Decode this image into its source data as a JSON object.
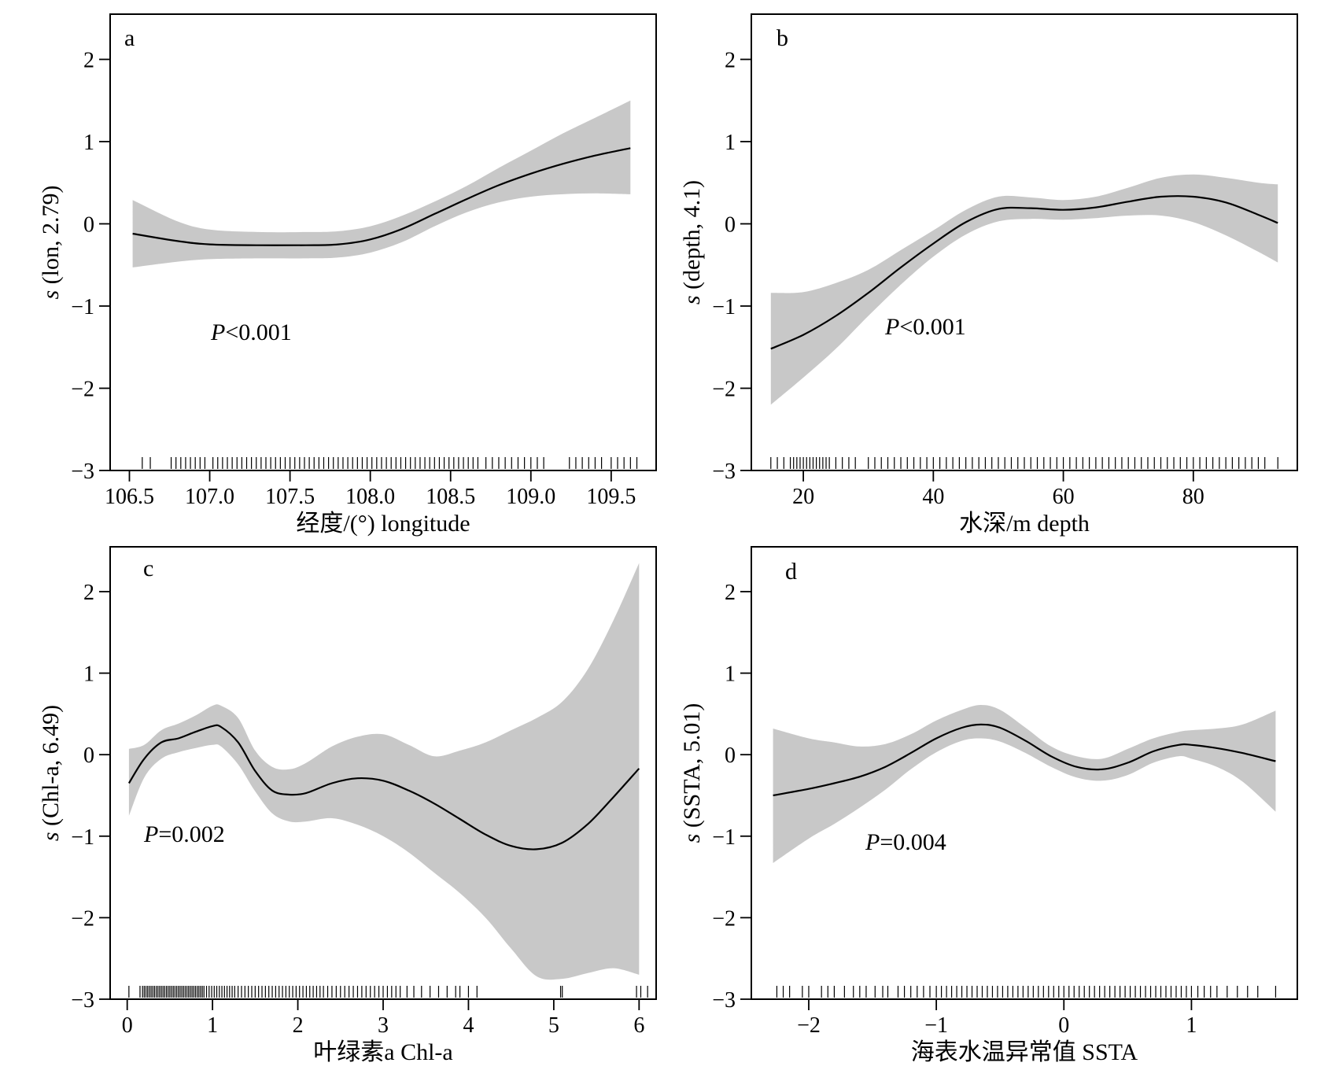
{
  "chart_data": [
    {
      "type": "line",
      "panel": "a",
      "xlabel": "经度/(°) longitude",
      "ylabel_italic": "s",
      "ylabel_rest": " (lon, 2.79)",
      "p_italic": "P",
      "p_rest": "<0.001",
      "xlim": [
        106.38,
        109.78
      ],
      "ylim": [
        -3,
        2.55
      ],
      "xticks": [
        106.5,
        107.0,
        107.5,
        108.0,
        108.5,
        109.0,
        109.5
      ],
      "xtick_labels": [
        "106.5",
        "107.0",
        "107.5",
        "108.0",
        "108.5",
        "109.0",
        "109.5"
      ],
      "yticks": [
        -3,
        -2,
        -1,
        0,
        1,
        2
      ],
      "ytick_labels": [
        "−3",
        "−2",
        "−1",
        "0",
        "1",
        "2"
      ],
      "fit": {
        "x": [
          106.52,
          106.8,
          107.0,
          107.3,
          107.6,
          107.8,
          108.0,
          108.2,
          108.4,
          108.6,
          108.8,
          109.0,
          109.2,
          109.4,
          109.62
        ],
        "y": [
          -0.12,
          -0.21,
          -0.25,
          -0.26,
          -0.26,
          -0.25,
          -0.19,
          -0.06,
          0.12,
          0.3,
          0.47,
          0.61,
          0.73,
          0.83,
          0.92
        ],
        "lower": [
          -0.53,
          -0.46,
          -0.43,
          -0.42,
          -0.42,
          -0.41,
          -0.35,
          -0.22,
          -0.03,
          0.14,
          0.26,
          0.33,
          0.36,
          0.37,
          0.36
        ],
        "upper": [
          0.29,
          0.03,
          -0.07,
          -0.1,
          -0.1,
          -0.09,
          -0.03,
          0.1,
          0.27,
          0.46,
          0.68,
          0.89,
          1.1,
          1.29,
          1.5
        ]
      },
      "rug": [
        106.58,
        106.63,
        106.76,
        106.79,
        106.82,
        106.85,
        106.88,
        106.91,
        106.94,
        106.97,
        107.02,
        107.05,
        107.08,
        107.11,
        107.14,
        107.17,
        107.2,
        107.23,
        107.26,
        107.29,
        107.32,
        107.35,
        107.38,
        107.41,
        107.44,
        107.47,
        107.5,
        107.53,
        107.56,
        107.59,
        107.62,
        107.65,
        107.68,
        107.71,
        107.74,
        107.77,
        107.8,
        107.83,
        107.86,
        107.89,
        107.92,
        107.95,
        107.98,
        108.01,
        108.04,
        108.07,
        108.1,
        108.13,
        108.16,
        108.19,
        108.22,
        108.25,
        108.28,
        108.31,
        108.34,
        108.37,
        108.4,
        108.43,
        108.46,
        108.49,
        108.52,
        108.55,
        108.58,
        108.61,
        108.64,
        108.67,
        108.72,
        108.76,
        108.8,
        108.84,
        108.88,
        108.92,
        108.96,
        109.0,
        109.04,
        109.08,
        109.24,
        109.28,
        109.32,
        109.36,
        109.4,
        109.44,
        109.5,
        109.54,
        109.58,
        109.62,
        109.66
      ]
    },
    {
      "type": "line",
      "panel": "b",
      "xlabel": "水深/m depth",
      "ylabel_italic": "s",
      "ylabel_rest": " (depth, 4.1)",
      "p_italic": "P",
      "p_rest": "<0.001",
      "xlim": [
        12,
        96
      ],
      "ylim": [
        -3,
        2.55
      ],
      "xticks": [
        20,
        40,
        60,
        80
      ],
      "xtick_labels": [
        "20",
        "40",
        "60",
        "80"
      ],
      "yticks": [
        -3,
        -2,
        -1,
        0,
        1,
        2
      ],
      "ytick_labels": [
        "−3",
        "−2",
        "−1",
        "0",
        "1",
        "2"
      ],
      "fit": {
        "x": [
          15,
          20,
          25,
          30,
          35,
          40,
          45,
          50,
          55,
          60,
          65,
          70,
          75,
          80,
          85,
          90,
          93
        ],
        "y": [
          -1.52,
          -1.35,
          -1.12,
          -0.84,
          -0.53,
          -0.24,
          0.02,
          0.18,
          0.19,
          0.17,
          0.2,
          0.27,
          0.33,
          0.33,
          0.26,
          0.11,
          0.01
        ],
        "lower": [
          -2.2,
          -1.87,
          -1.52,
          -1.12,
          -0.74,
          -0.4,
          -0.13,
          0.03,
          0.06,
          0.05,
          0.07,
          0.1,
          0.1,
          0.02,
          -0.14,
          -0.34,
          -0.47
        ],
        "upper": [
          -0.84,
          -0.83,
          -0.72,
          -0.56,
          -0.32,
          -0.08,
          0.17,
          0.33,
          0.32,
          0.29,
          0.33,
          0.44,
          0.56,
          0.6,
          0.56,
          0.5,
          0.48
        ]
      },
      "rug": [
        15,
        16,
        17,
        18,
        18.5,
        19,
        19.5,
        20,
        20.5,
        21,
        21.5,
        22,
        22.5,
        23,
        23.5,
        24,
        25,
        26,
        27,
        28,
        30,
        31,
        32,
        33,
        34,
        35,
        36,
        37,
        38,
        39,
        40,
        41,
        42,
        43,
        44,
        45,
        46,
        47,
        48,
        49,
        50,
        51,
        52,
        53,
        54,
        55,
        56,
        57,
        58,
        59,
        60,
        61,
        62,
        63,
        64,
        65,
        66,
        67,
        68,
        69,
        70,
        71,
        72,
        73,
        74,
        75,
        76,
        77,
        78,
        79,
        80,
        81,
        82,
        83,
        84,
        85,
        86,
        87,
        88,
        89,
        90,
        91,
        93
      ]
    },
    {
      "type": "line",
      "panel": "c",
      "xlabel": "叶绿素a Chl-a",
      "ylabel_italic": "s",
      "ylabel_rest": " (Chl-a, 6.49)",
      "p_italic": "P",
      "p_rest": "=0.002",
      "xlim": [
        -0.2,
        6.2
      ],
      "ylim": [
        -3,
        2.55
      ],
      "xticks": [
        0,
        1,
        2,
        3,
        4,
        5,
        6
      ],
      "xtick_labels": [
        "0",
        "1",
        "2",
        "3",
        "4",
        "5",
        "6"
      ],
      "yticks": [
        -3,
        -2,
        -1,
        0,
        1,
        2
      ],
      "ytick_labels": [
        "−3",
        "−2",
        "−1",
        "0",
        "1",
        "2"
      ],
      "fit": {
        "x": [
          0.02,
          0.2,
          0.4,
          0.6,
          0.8,
          1.0,
          1.1,
          1.3,
          1.5,
          1.7,
          1.9,
          2.1,
          2.4,
          2.7,
          3.0,
          3.3,
          3.6,
          3.9,
          4.2,
          4.5,
          4.8,
          5.1,
          5.4,
          5.7,
          6.0
        ],
        "y": [
          -0.35,
          -0.05,
          0.15,
          0.2,
          0.28,
          0.35,
          0.34,
          0.15,
          -0.2,
          -0.44,
          -0.49,
          -0.47,
          -0.35,
          -0.29,
          -0.32,
          -0.44,
          -0.6,
          -0.79,
          -0.98,
          -1.12,
          -1.16,
          -1.08,
          -0.85,
          -0.52,
          -0.17
        ],
        "lower": [
          -0.75,
          -0.28,
          -0.05,
          0.03,
          0.08,
          0.12,
          0.1,
          -0.12,
          -0.45,
          -0.72,
          -0.82,
          -0.82,
          -0.78,
          -0.86,
          -1.0,
          -1.2,
          -1.45,
          -1.7,
          -2.0,
          -2.38,
          -2.72,
          -2.75,
          -2.68,
          -2.62,
          -2.7
        ],
        "upper": [
          0.07,
          0.12,
          0.3,
          0.38,
          0.48,
          0.6,
          0.6,
          0.45,
          0.05,
          -0.15,
          -0.18,
          -0.1,
          0.1,
          0.22,
          0.25,
          0.12,
          -0.02,
          0.05,
          0.15,
          0.3,
          0.45,
          0.65,
          1.05,
          1.65,
          2.35
        ]
      },
      "rug": [
        0.02,
        0.15,
        0.18,
        0.2,
        0.22,
        0.24,
        0.26,
        0.28,
        0.3,
        0.32,
        0.34,
        0.36,
        0.38,
        0.4,
        0.42,
        0.44,
        0.46,
        0.48,
        0.5,
        0.52,
        0.54,
        0.56,
        0.58,
        0.6,
        0.62,
        0.64,
        0.66,
        0.68,
        0.7,
        0.72,
        0.74,
        0.76,
        0.78,
        0.8,
        0.82,
        0.84,
        0.86,
        0.88,
        0.9,
        0.93,
        0.96,
        0.99,
        1.02,
        1.05,
        1.08,
        1.11,
        1.14,
        1.17,
        1.2,
        1.23,
        1.26,
        1.3,
        1.34,
        1.38,
        1.42,
        1.46,
        1.5,
        1.54,
        1.58,
        1.62,
        1.66,
        1.7,
        1.74,
        1.78,
        1.82,
        1.86,
        1.9,
        1.94,
        1.98,
        2.02,
        2.06,
        2.1,
        2.14,
        2.18,
        2.22,
        2.26,
        2.3,
        2.35,
        2.4,
        2.45,
        2.5,
        2.55,
        2.6,
        2.65,
        2.7,
        2.75,
        2.8,
        2.85,
        2.9,
        2.95,
        3.0,
        3.05,
        3.1,
        3.15,
        3.2,
        3.28,
        3.36,
        3.45,
        3.55,
        3.65,
        3.75,
        3.85,
        3.9,
        4.0,
        4.1,
        5.08,
        5.1,
        5.97,
        6.02,
        6.1
      ]
    },
    {
      "type": "line",
      "panel": "d",
      "xlabel": "海表水温异常值 SSTA",
      "ylabel_italic": "s",
      "ylabel_rest": " (SSTA, 5.01)",
      "p_italic": "P",
      "p_rest": "=0.004",
      "xlim": [
        -2.45,
        1.83
      ],
      "ylim": [
        -3,
        2.55
      ],
      "xticks": [
        -2,
        -1,
        0,
        1
      ],
      "xtick_labels": [
        "−2",
        "−1",
        "0",
        "1"
      ],
      "yticks": [
        -3,
        -2,
        -1,
        0,
        1,
        2
      ],
      "ytick_labels": [
        "−3",
        "−2",
        "−1",
        "0",
        "1",
        "2"
      ],
      "fit": {
        "x": [
          -2.28,
          -2.0,
          -1.8,
          -1.6,
          -1.4,
          -1.2,
          -1.0,
          -0.8,
          -0.65,
          -0.5,
          -0.3,
          -0.1,
          0.1,
          0.3,
          0.5,
          0.7,
          0.9,
          1.0,
          1.2,
          1.4,
          1.66
        ],
        "y": [
          -0.5,
          -0.42,
          -0.35,
          -0.27,
          -0.15,
          0.02,
          0.2,
          0.33,
          0.37,
          0.33,
          0.17,
          -0.02,
          -0.15,
          -0.18,
          -0.1,
          0.04,
          0.12,
          0.12,
          0.08,
          0.02,
          -0.08
        ],
        "lower": [
          -1.33,
          -1.03,
          -0.85,
          -0.65,
          -0.43,
          -0.18,
          0.03,
          0.17,
          0.2,
          0.16,
          0.02,
          -0.15,
          -0.28,
          -0.32,
          -0.25,
          -0.1,
          -0.02,
          -0.05,
          -0.15,
          -0.33,
          -0.7
        ],
        "upper": [
          0.32,
          0.2,
          0.15,
          0.1,
          0.13,
          0.25,
          0.42,
          0.55,
          0.61,
          0.55,
          0.33,
          0.1,
          -0.02,
          -0.05,
          0.07,
          0.2,
          0.28,
          0.3,
          0.32,
          0.37,
          0.54
        ]
      },
      "rug": [
        -2.25,
        -2.2,
        -2.15,
        -2.05,
        -2.0,
        -1.9,
        -1.85,
        -1.8,
        -1.72,
        -1.65,
        -1.6,
        -1.55,
        -1.48,
        -1.42,
        -1.38,
        -1.3,
        -1.25,
        -1.2,
        -1.15,
        -1.1,
        -1.05,
        -1.0,
        -0.96,
        -0.92,
        -0.88,
        -0.84,
        -0.8,
        -0.76,
        -0.72,
        -0.68,
        -0.64,
        -0.6,
        -0.56,
        -0.52,
        -0.48,
        -0.44,
        -0.4,
        -0.36,
        -0.32,
        -0.28,
        -0.24,
        -0.2,
        -0.16,
        -0.12,
        -0.08,
        -0.04,
        0.0,
        0.04,
        0.08,
        0.12,
        0.16,
        0.2,
        0.24,
        0.28,
        0.32,
        0.36,
        0.4,
        0.44,
        0.48,
        0.52,
        0.56,
        0.6,
        0.64,
        0.68,
        0.72,
        0.76,
        0.8,
        0.84,
        0.88,
        0.92,
        0.96,
        1.0,
        1.05,
        1.1,
        1.15,
        1.2,
        1.28,
        1.36,
        1.44,
        1.52,
        1.66
      ]
    }
  ]
}
